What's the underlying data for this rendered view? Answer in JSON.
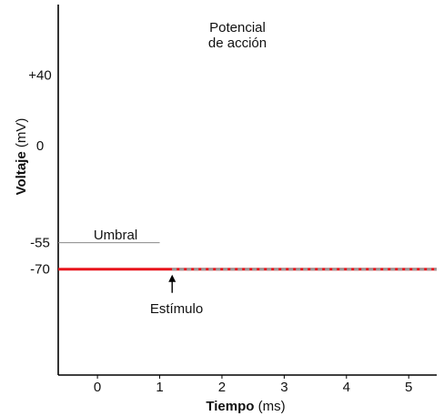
{
  "chart_data": {
    "type": "line",
    "title_lines": [
      "Potencial",
      "de acción"
    ],
    "xlabel_bold": "Tiempo",
    "xlabel_unit": "(ms)",
    "ylabel_bold": "Voltaje",
    "ylabel_unit": "(mV)",
    "x_ticks": [
      0,
      1,
      2,
      3,
      4,
      5
    ],
    "y_ticks": [
      "+40",
      "0",
      "-55",
      "-70"
    ],
    "y_tick_values": [
      40,
      0,
      -55,
      -70
    ],
    "xlim": [
      -0.63,
      5.45
    ],
    "ylim": [
      -130,
      80
    ],
    "threshold": {
      "label": "Umbral",
      "value": -55,
      "x_range": [
        -0.63,
        1.0
      ]
    },
    "stimulus": {
      "label": "Estímulo",
      "x": 1.2
    },
    "series": [
      {
        "values": {
          "x": [
            -0.63,
            1.2
          ],
          "y": [
            -70,
            -70
          ]
        }
      },
      {
        "style": "dashed",
        "values": {
          "x": [
            1.2,
            5.45
          ],
          "y": [
            -70,
            -70
          ]
        }
      }
    ]
  },
  "colors": {
    "resting": "#e8141b",
    "threshold": "#888888",
    "dashed": "#999999",
    "axis": "#000000"
  }
}
